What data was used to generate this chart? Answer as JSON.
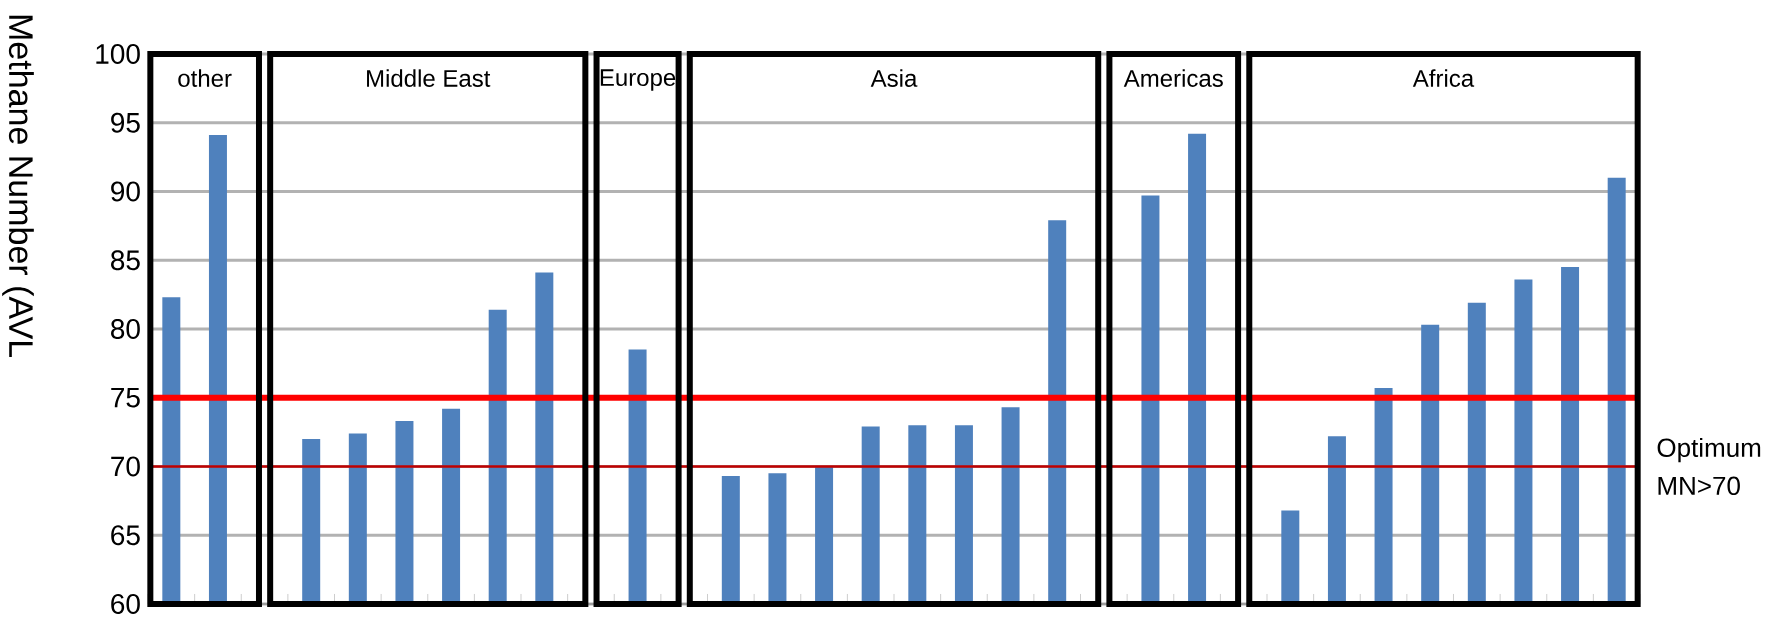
{
  "chart_data": {
    "type": "bar",
    "ylabel": "Methane Number (AVL",
    "categories": [
      null,
      null,
      null,
      null,
      null,
      null,
      null,
      null,
      null,
      null,
      null,
      null,
      null,
      null,
      null,
      null,
      null,
      null,
      null,
      null,
      null,
      null,
      null,
      null,
      null,
      null,
      null,
      null,
      null,
      null,
      null,
      null
    ],
    "values": [
      82.3,
      94.1,
      null,
      72.0,
      72.4,
      73.3,
      74.2,
      81.4,
      84.1,
      null,
      78.5,
      null,
      69.3,
      69.5,
      70.0,
      72.9,
      73.0,
      73.0,
      74.3,
      87.9,
      null,
      89.7,
      94.2,
      null,
      66.8,
      72.2,
      75.7,
      80.3,
      81.9,
      83.6,
      84.5,
      91.0
    ],
    "color": "#4f81bd",
    "ylim": [
      60,
      100
    ],
    "yticks": [
      60,
      65,
      70,
      75,
      80,
      85,
      90,
      95,
      100
    ],
    "grid": "y",
    "tick_labels": "y",
    "ref_lines": [
      {
        "axis": "y",
        "value": 75,
        "label": null,
        "color": "#ff0000"
      },
      {
        "axis": "y",
        "value": 70,
        "label": "Optimum MN>70",
        "color": "#c00000"
      }
    ],
    "annotations": [
      "other",
      "Middle East",
      "Europe",
      "Asia",
      "Americas",
      "Africa"
    ]
  }
}
